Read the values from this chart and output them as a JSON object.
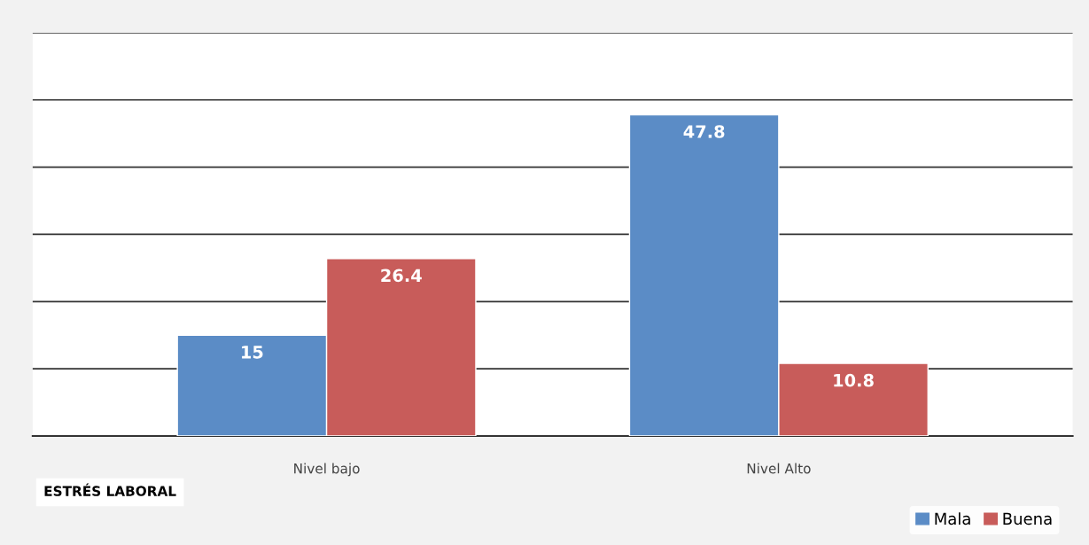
{
  "chart_data": {
    "type": "bar",
    "categories": [
      "Nivel bajo",
      "Nivel Alto"
    ],
    "series": [
      {
        "name": "Mala",
        "color": "#5b8cc6",
        "values": [
          15,
          47.8
        ]
      },
      {
        "name": "Buena",
        "color": "#c85c5a",
        "values": [
          26.4,
          10.8
        ]
      }
    ],
    "ylim": [
      0,
      60
    ],
    "yticks": [
      {
        "value": 0,
        "label": null
      },
      {
        "value": 10,
        "label": null
      },
      {
        "value": 20,
        "label": null
      },
      {
        "value": 30,
        "label": null
      },
      {
        "value": 40,
        "label": null
      },
      {
        "value": 50,
        "label": null
      },
      {
        "value": 60,
        "label": null
      }
    ],
    "grid": "y",
    "data_labels": true,
    "legend": "bottom right",
    "annotations": [
      "ESTRÉS LABORAL"
    ]
  }
}
